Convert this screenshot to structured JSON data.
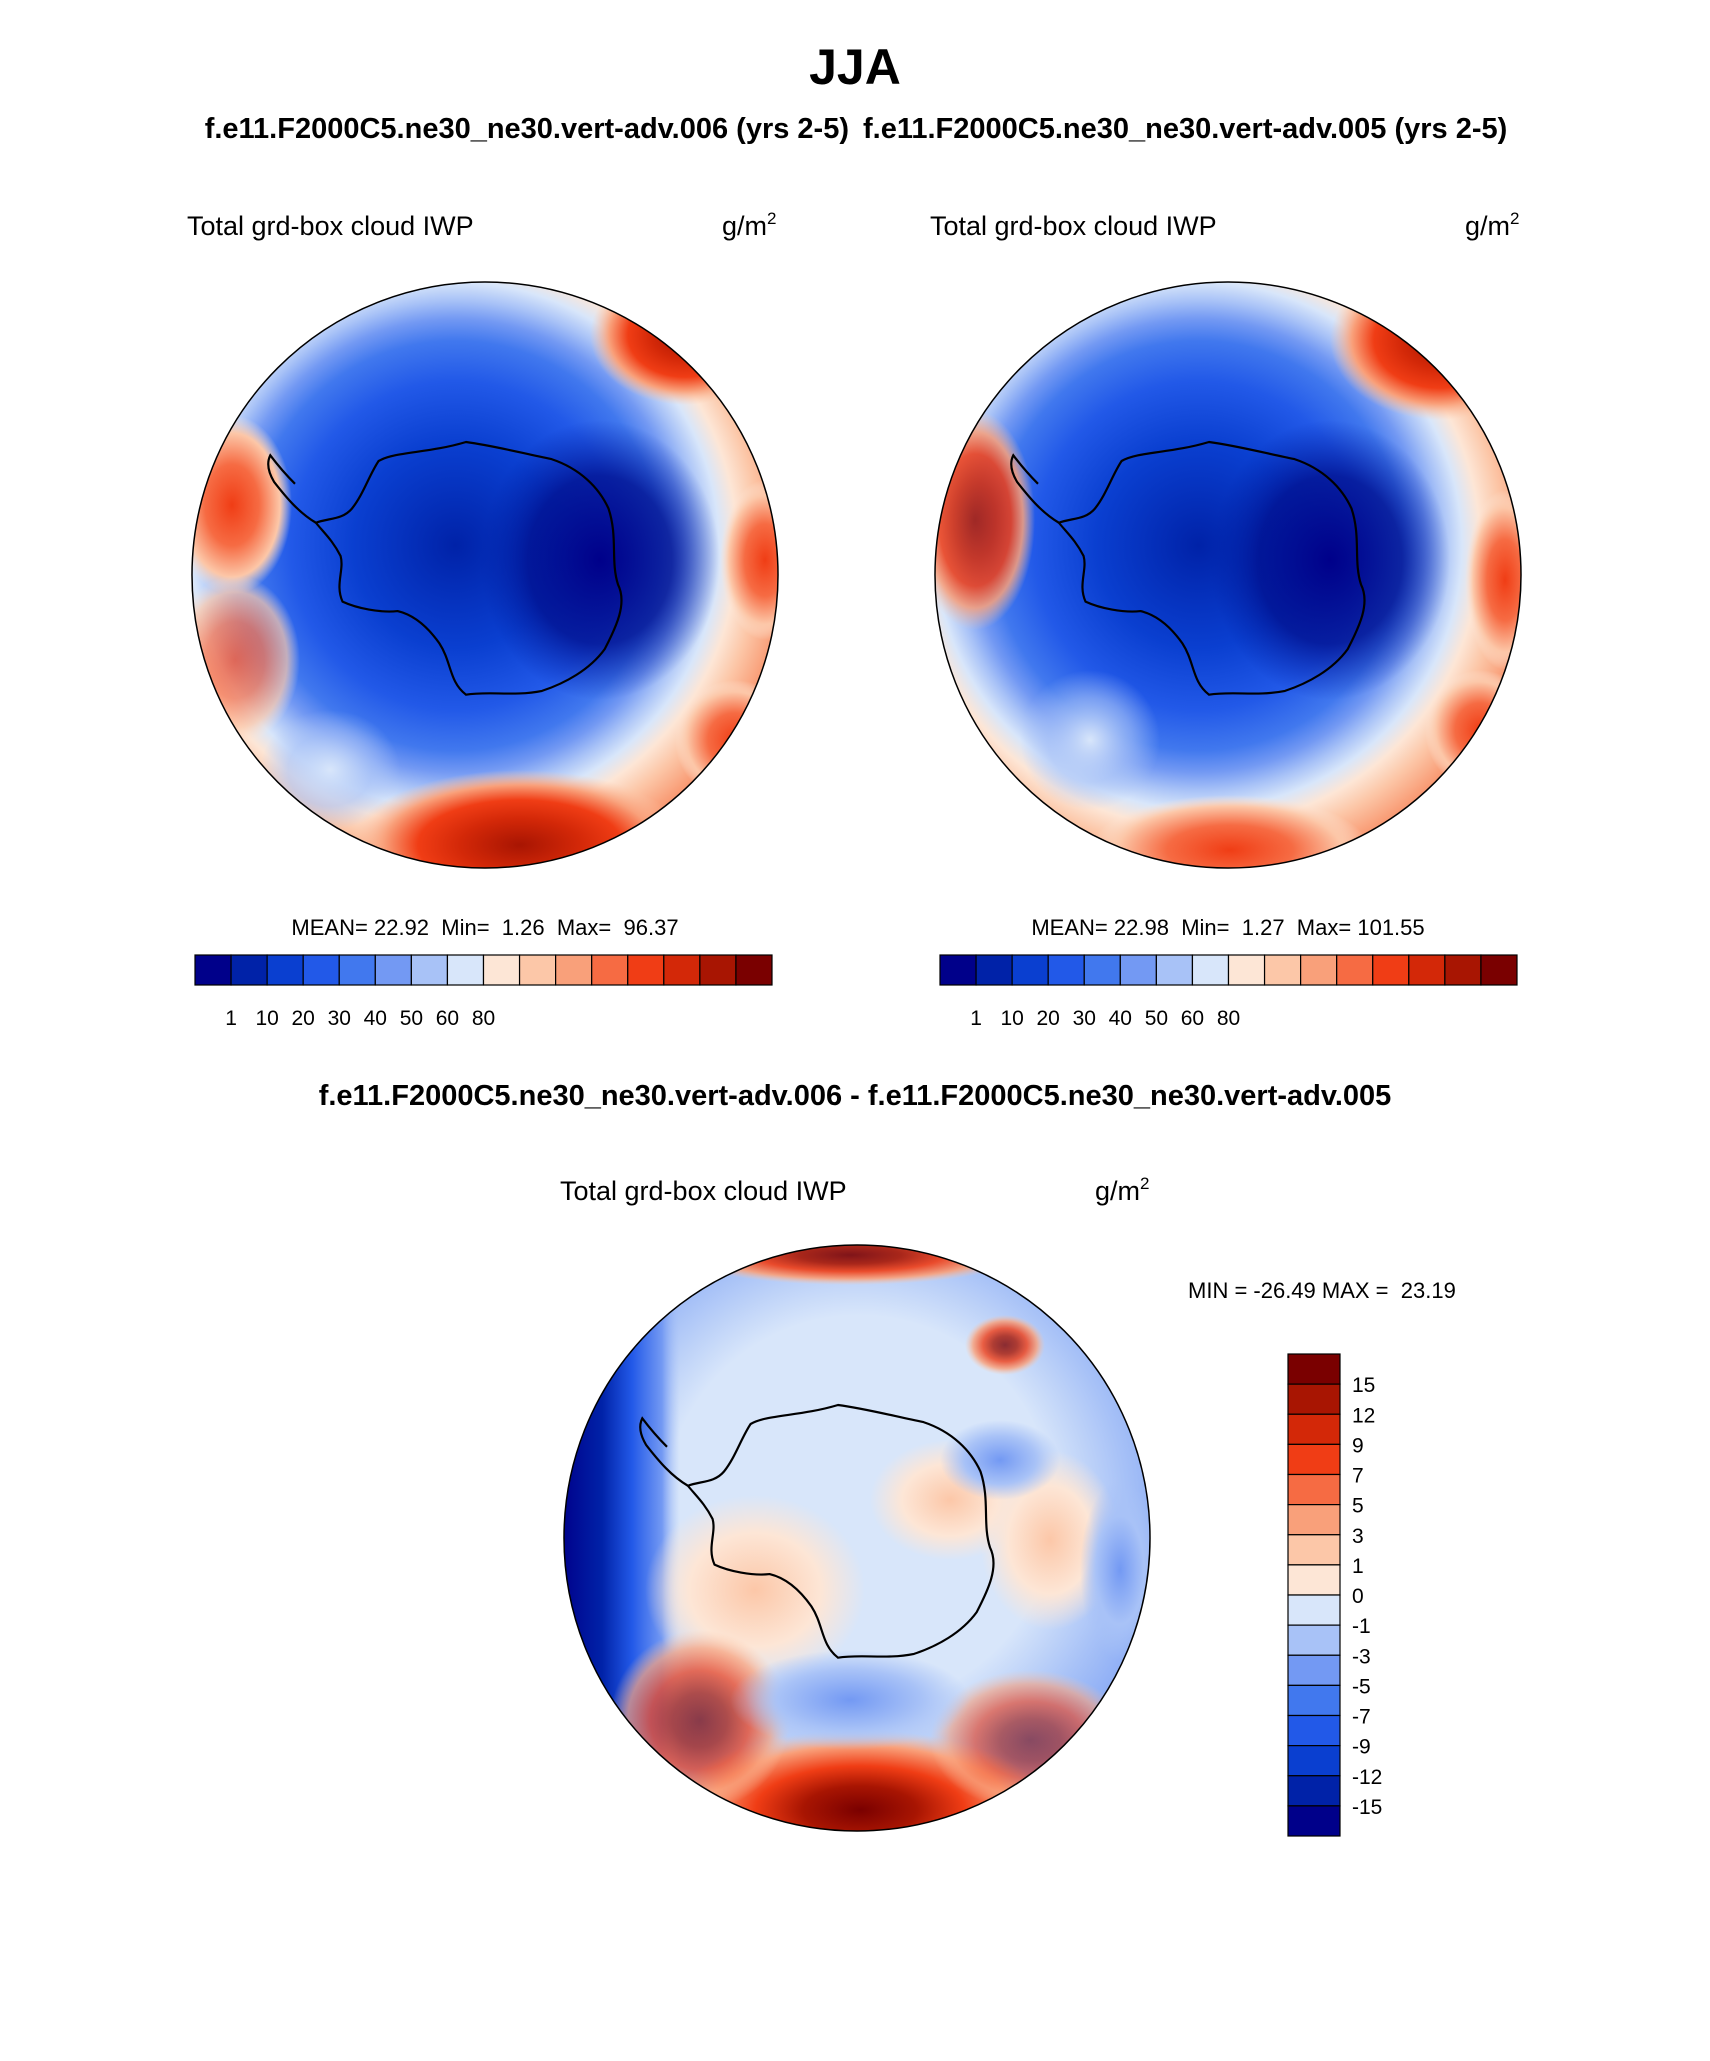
{
  "figure": {
    "title": "JJA",
    "top_subtitle_left": "f.e11.F2000C5.ne30_ne30.vert-adv.006 (yrs 2-5)",
    "top_subtitle_right": "f.e11.F2000C5.ne30_ne30.vert-adv.005 (yrs 2-5)",
    "diff_subtitle": "f.e11.F2000C5.ne30_ne30.vert-adv.006 - f.e11.F2000C5.ne30_ne30.vert-adv.005"
  },
  "panels": [
    {
      "id": "case-006",
      "variable": "Total grd-box cloud IWP",
      "units": "g/m",
      "units_sup": "2",
      "stats": {
        "mean_label": "MEAN=",
        "mean": "22.92",
        "min_label": "Min=",
        "min": "1.26",
        "max_label": "Max=",
        "max": "96.37"
      }
    },
    {
      "id": "case-005",
      "variable": "Total grd-box cloud IWP",
      "units": "g/m",
      "units_sup": "2",
      "stats": {
        "mean_label": "MEAN=",
        "mean": "22.98",
        "min_label": "Min=",
        "min": "1.27",
        "max_label": "Max=",
        "max": "101.55"
      }
    },
    {
      "id": "difference",
      "variable": "Total grd-box cloud IWP",
      "units": "g/m",
      "units_sup": "2",
      "stats": {
        "text": "MIN = -26.49 MAX =  23.19"
      }
    }
  ],
  "colorbars": {
    "field": {
      "colors": [
        "#00008a",
        "#0022a8",
        "#0a3fd0",
        "#2259e8",
        "#4178ee",
        "#7399f3",
        "#a8c2f7",
        "#d8e6fa",
        "#fde6d6",
        "#fcc7a8",
        "#f9a07a",
        "#f66b43",
        "#f03d15",
        "#d32808",
        "#a81502",
        "#7a0000"
      ],
      "labels": [
        "1",
        "10",
        "20",
        "30",
        "40",
        "50",
        "60",
        "80"
      ],
      "label_boundary_index": [
        1,
        2,
        3,
        4,
        5,
        6,
        7,
        8
      ]
    },
    "diff": {
      "colors_top_to_bottom": [
        "#7a0000",
        "#a81502",
        "#d32808",
        "#f03d15",
        "#f66b43",
        "#f9a07a",
        "#fcc7a8",
        "#fde6d6",
        "#d8e6fa",
        "#a8c2f7",
        "#7399f3",
        "#4178ee",
        "#2259e8",
        "#0a3fd0",
        "#0022a8",
        "#00008a"
      ],
      "labels_top_to_bottom": [
        "15",
        "12",
        "9",
        "7",
        "5",
        "3",
        "1",
        "0",
        "-1",
        "-3",
        "-5",
        "-7",
        "-9",
        "-12",
        "-15"
      ]
    }
  },
  "map": {
    "projection": "south-polar-stereographic",
    "region": "Antarctica"
  }
}
